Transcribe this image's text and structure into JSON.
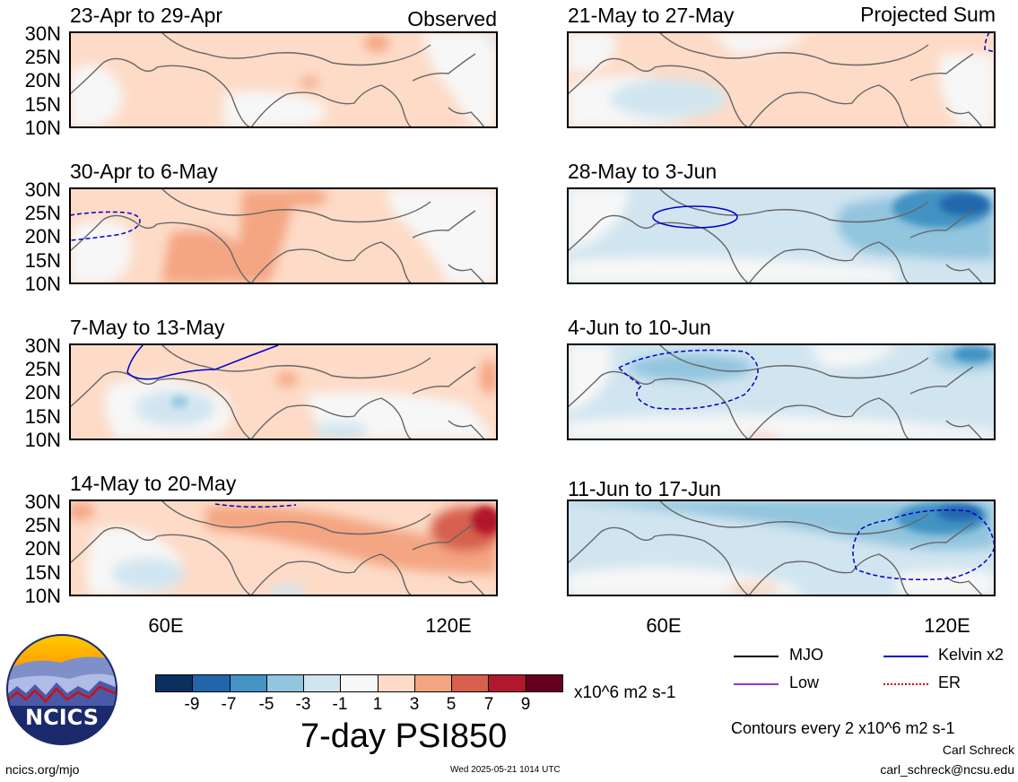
{
  "header": {
    "observed_label": "Observed",
    "projected_label": "Projected Sum"
  },
  "panels": [
    {
      "title": "23-Apr to 29-Apr"
    },
    {
      "title": "30-Apr to 6-May"
    },
    {
      "title": "7-May to 13-May"
    },
    {
      "title": "14-May to 20-May"
    },
    {
      "title": "21-May to 27-May"
    },
    {
      "title": "28-May to 3-Jun"
    },
    {
      "title": "4-Jun to 10-Jun"
    },
    {
      "title": "11-Jun to 17-Jun"
    }
  ],
  "axes": {
    "lat_ticks": [
      "30N",
      "25N",
      "20N",
      "15N",
      "10N"
    ],
    "lon_ticks": [
      "60E",
      "120E"
    ]
  },
  "colorbar": {
    "colors": [
      "#0b2f5e",
      "#2166ac",
      "#4393c3",
      "#92c5de",
      "#d1e5f0",
      "#f7f7f7",
      "#fddbc7",
      "#f4a582",
      "#d6604d",
      "#b2182b",
      "#67001f"
    ],
    "ticks": [
      "-9",
      "-7",
      "-5",
      "-3",
      "-1",
      "1",
      "3",
      "5",
      "7",
      "9"
    ],
    "units": "x10^6 m2 s-1"
  },
  "main_title": "7-day PSI850",
  "legend": {
    "items": [
      {
        "label": "MJO",
        "color": "#000000"
      },
      {
        "label": "Kelvin x2",
        "color": "#0000cc"
      },
      {
        "label": "Low",
        "color": "#9933cc"
      },
      {
        "label": "ER",
        "color": "#cc0000"
      }
    ],
    "contour_note": "Contours every 2 x10^6 m2 s-1"
  },
  "logo": {
    "text": "NCICS"
  },
  "footer": {
    "url": "ncics.org/mjo",
    "timestamp": "Wed 2025-05-21 1014 UTC",
    "author": "Carl Schreck",
    "email": "carl_schreck@ncsu.edu"
  }
}
